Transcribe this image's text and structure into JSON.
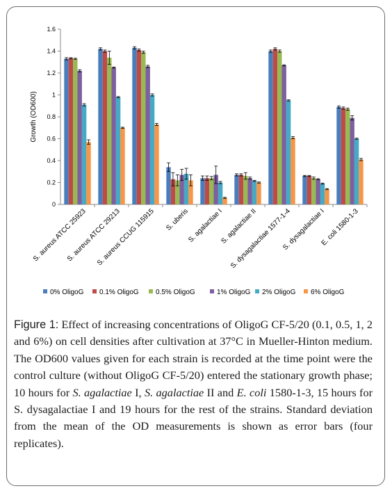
{
  "chart_data": {
    "type": "bar",
    "title": "",
    "xlabel": "",
    "ylabel": "Growth  (OD600)",
    "ylim": [
      0,
      1.6
    ],
    "yticks": [
      "0",
      "0.2",
      "0.4",
      "0.6",
      "0.8",
      "1",
      "1.2",
      "1.4",
      "1.6"
    ],
    "error_bars": true,
    "grid": false,
    "legend_position": "bottom",
    "categories": [
      "S. aureus ATCC 25923",
      "S. aureus ATCC 29213",
      "S. aureus CCUG 115915",
      "S. uberis",
      "S. agalactiae I",
      "S. agalactiae II",
      "S. dysagalactiae 1577-1-4",
      "S. dysagalactiae I",
      "E. coli 1580-1-3"
    ],
    "series": [
      {
        "name": "0% OligoG",
        "color": "#4a7ebb",
        "values": [
          1.33,
          1.42,
          1.43,
          0.34,
          0.24,
          0.27,
          1.4,
          0.26,
          0.89
        ],
        "errors": [
          0.01,
          0.01,
          0.01,
          0.04,
          0.02,
          0.01,
          0.01,
          0.005,
          0.01
        ]
      },
      {
        "name": "0.1% OligoG",
        "color": "#be4b48",
        "values": [
          1.335,
          1.4,
          1.41,
          0.23,
          0.24,
          0.27,
          1.42,
          0.26,
          0.88
        ],
        "errors": [
          0.005,
          0.01,
          0.01,
          0.06,
          0.02,
          0.01,
          0.01,
          0.005,
          0.01
        ]
      },
      {
        "name": "0.5% OligoG",
        "color": "#98b954",
        "values": [
          1.33,
          1.34,
          1.39,
          0.22,
          0.24,
          0.26,
          1.4,
          0.24,
          0.87
        ],
        "errors": [
          0.005,
          0.06,
          0.01,
          0.05,
          0.015,
          0.03,
          0.01,
          0.01,
          0.01
        ]
      },
      {
        "name": "1% OligoG",
        "color": "#7d60a0",
        "values": [
          1.22,
          1.25,
          1.26,
          0.27,
          0.27,
          0.24,
          1.27,
          0.23,
          0.79
        ],
        "errors": [
          0.01,
          0.005,
          0.01,
          0.05,
          0.08,
          0.01,
          0.005,
          0.005,
          0.02
        ]
      },
      {
        "name": "2% OligoG",
        "color": "#46aac5",
        "values": [
          0.91,
          0.98,
          1.0,
          0.28,
          0.2,
          0.215,
          0.95,
          0.19,
          0.6
        ],
        "errors": [
          0.01,
          0.005,
          0.01,
          0.05,
          0.01,
          0.005,
          0.005,
          0.005,
          0.005
        ]
      },
      {
        "name": "6% OligoG",
        "color": "#f79646",
        "values": [
          0.57,
          0.7,
          0.73,
          0.22,
          0.06,
          0.2,
          0.61,
          0.14,
          0.41
        ],
        "errors": [
          0.02,
          0.005,
          0.01,
          0.05,
          0.005,
          0.005,
          0.01,
          0.005,
          0.01
        ]
      }
    ]
  },
  "caption": {
    "figure_label": "Figure 1:",
    "parts": [
      {
        "text": " Effect of increasing concentrations of OligoG CF-5/20 (0.1, 0.5, 1, 2 and 6%) on cell densities after cultivation at 37°C in Mueller-Hinton medium. The OD600 values given for each strain is recorded at the time point were the control culture (without OligoG CF-5/20) entered the stationary growth phase; 10 hours for ",
        "italic": false
      },
      {
        "text": "S. agalactiae",
        "italic": true
      },
      {
        "text": " I, ",
        "italic": false
      },
      {
        "text": "S. agalactiae",
        "italic": true
      },
      {
        "text": " II and ",
        "italic": false
      },
      {
        "text": "E. coli",
        "italic": true
      },
      {
        "text": " 1580-1-3, 15 hours for S. dysagalactiae I and 19 hours for the rest of the strains. Standard deviation from the mean of the OD measurements is shown as error bars (four replicates).",
        "italic": false
      }
    ]
  }
}
